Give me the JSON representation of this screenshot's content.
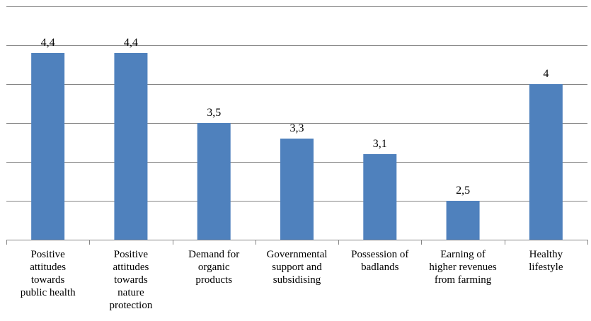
{
  "chart_data": {
    "type": "bar",
    "title": "",
    "xlabel": "",
    "ylabel": "",
    "ylim": [
      2,
      5
    ],
    "gridlines": [
      2,
      2.5,
      3,
      3.5,
      4,
      4.5,
      5
    ],
    "grid": true,
    "legend": "none",
    "categories": [
      [
        "Positive",
        "attitudes",
        "towards",
        "public health"
      ],
      [
        "Positive",
        "attitudes",
        "towards",
        "nature",
        "protection"
      ],
      [
        "Demand for",
        "organic",
        "products"
      ],
      [
        "Governmental",
        "support and",
        "subsidising"
      ],
      [
        "Possession of",
        "badlands"
      ],
      [
        "Earning of",
        "higher revenues",
        "from farming"
      ],
      [
        "Healthy",
        "lifestyle"
      ]
    ],
    "values": [
      4.4,
      4.4,
      3.5,
      3.3,
      3.1,
      2.5,
      4.0
    ],
    "data_labels": [
      "4,4",
      "4,4",
      "3,5",
      "3,3",
      "3,1",
      "2,5",
      "4"
    ],
    "bar_color": "#4F81BD",
    "grid_color": "#868686"
  }
}
